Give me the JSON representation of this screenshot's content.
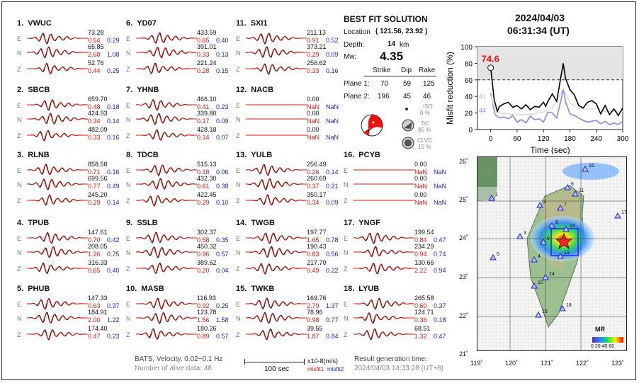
{
  "date": "2024/04/03",
  "time": "06:31:34  (UT)",
  "solution": {
    "title": "BEST FIT SOLUTION",
    "location_label": "Location",
    "location": "( 121.56, 23.92 )",
    "depth_label": "Depth:",
    "depth": "14",
    "depth_unit": "km",
    "mw_label": "Mw:",
    "mw": "4.35",
    "headers": [
      "Strike",
      "Dip",
      "Rake"
    ],
    "planes": [
      {
        "label": "Plane 1:",
        "values": [
          "70",
          "59",
          "125"
        ]
      },
      {
        "label": "Plane 2:",
        "values": [
          "196",
          "45",
          "46"
        ]
      }
    ],
    "iso_label": "ISO",
    "iso_value": "0 %",
    "dc_label": "DC",
    "dc_value": "85 %",
    "clvd_label": "CLVD",
    "clvd_value": "15 %"
  },
  "stations": [
    {
      "num": "1.",
      "name": "VWUC",
      "rows": [
        {
          "c": "E",
          "amp": "73.28",
          "m1": "0.54",
          "m2": "0.29"
        },
        {
          "c": "N",
          "amp": "65.85",
          "m1": "2.68",
          "m2": "1.08"
        },
        {
          "c": "Z",
          "amp": "52.76",
          "m1": "0.44",
          "m2": "0.25"
        }
      ]
    },
    {
      "num": "2.",
      "name": "SBCB",
      "rows": [
        {
          "c": "E",
          "amp": "659.70",
          "m1": "0.48",
          "m2": "0.18"
        },
        {
          "c": "N",
          "amp": "424.93",
          "m1": "0.34",
          "m2": "0.14"
        },
        {
          "c": "Z",
          "amp": "482.09",
          "m1": "0.33",
          "m2": "0.16"
        }
      ]
    },
    {
      "num": "3.",
      "name": "RLNB",
      "rows": [
        {
          "c": "E",
          "amp": "858.58",
          "m1": "0.71",
          "m2": "0.16"
        },
        {
          "c": "N",
          "amp": "699.56",
          "m1": "0.77",
          "m2": "0.49"
        },
        {
          "c": "Z",
          "amp": "245.20",
          "m1": "0.29",
          "m2": "0.14"
        }
      ]
    },
    {
      "num": "4.",
      "name": "TPUB",
      "rows": [
        {
          "c": "E",
          "amp": "147.61",
          "m1": "0.70",
          "m2": "0.42"
        },
        {
          "c": "N",
          "amp": "208.05",
          "m1": "1.26",
          "m2": "0.75"
        },
        {
          "c": "Z",
          "amp": "316.33",
          "m1": "0.65",
          "m2": "0.40"
        }
      ]
    },
    {
      "num": "5.",
      "name": "PHUB",
      "rows": [
        {
          "c": "E",
          "amp": "147.33",
          "m1": "0.63",
          "m2": "0.37"
        },
        {
          "c": "N",
          "amp": "184.91",
          "m1": "2.00",
          "m2": "1.22"
        },
        {
          "c": "Z",
          "amp": "174.40",
          "m1": "0.47",
          "m2": "0.23"
        }
      ]
    },
    {
      "num": "6.",
      "name": "YD07",
      "rows": [
        {
          "c": "E",
          "amp": "433.59",
          "m1": "0.65",
          "m2": "0.40"
        },
        {
          "c": "N",
          "amp": "391.01",
          "m1": "0.33",
          "m2": "0.13"
        },
        {
          "c": "Z",
          "amp": "221.24",
          "m1": "0.28",
          "m2": "0.15"
        }
      ]
    },
    {
      "num": "7.",
      "name": "YHNB",
      "rows": [
        {
          "c": "E",
          "amp": "466.10",
          "m1": "0.41",
          "m2": "0.23"
        },
        {
          "c": "N",
          "amp": "339.80",
          "m1": "0.17",
          "m2": "0.09"
        },
        {
          "c": "Z",
          "amp": "428.18",
          "m1": "0.14",
          "m2": "0.07"
        }
      ]
    },
    {
      "num": "8.",
      "name": "TDCB",
      "rows": [
        {
          "c": "E",
          "amp": "515.13",
          "m1": "0.18",
          "m2": "0.06"
        },
        {
          "c": "N",
          "amp": "432.30",
          "m1": "0.61",
          "m2": "0.38"
        },
        {
          "c": "Z",
          "amp": "422.45",
          "m1": "0.29",
          "m2": "0.10"
        }
      ]
    },
    {
      "num": "9.",
      "name": "SSLB",
      "rows": [
        {
          "c": "E",
          "amp": "302.37",
          "m1": "0.58",
          "m2": "0.35"
        },
        {
          "c": "N",
          "amp": "450.32",
          "m1": "0.96",
          "m2": "0.57"
        },
        {
          "c": "Z",
          "amp": "389.62",
          "m1": "0.20",
          "m2": "0.04"
        }
      ]
    },
    {
      "num": "10.",
      "name": "MASB",
      "rows": [
        {
          "c": "E",
          "amp": "116.93",
          "m1": "0.92",
          "m2": "0.25"
        },
        {
          "c": "N",
          "amp": "123.78",
          "m1": "1.56",
          "m2": "1.58"
        },
        {
          "c": "Z",
          "amp": "180.26",
          "m1": "0.89",
          "m2": "0.57"
        }
      ]
    },
    {
      "num": "11.",
      "name": "SXI1",
      "rows": [
        {
          "c": "E",
          "amp": "211.13",
          "m1": "0.91",
          "m2": "0.52"
        },
        {
          "c": "N",
          "amp": "373.21",
          "m1": "0.29",
          "m2": "0.09"
        },
        {
          "c": "Z",
          "amp": "256.62",
          "m1": "0.33",
          "m2": "0.16"
        }
      ]
    },
    {
      "num": "12.",
      "name": "NACB",
      "rows": [
        {
          "c": "E",
          "amp": "0.00",
          "m1": "NaN",
          "m2": "NaN"
        },
        {
          "c": "N",
          "amp": "0.00",
          "m1": "NaN",
          "m2": "NaN"
        },
        {
          "c": "Z",
          "amp": "0.00",
          "m1": "NaN",
          "m2": "NaN"
        }
      ]
    },
    {
      "num": "13.",
      "name": "YULB",
      "rows": [
        {
          "c": "E",
          "amp": "256.49",
          "m1": "0.26",
          "m2": "0.14"
        },
        {
          "c": "N",
          "amp": "260.69",
          "m1": "0.37",
          "m2": "0.21"
        },
        {
          "c": "Z",
          "amp": "350.17",
          "m1": "0.34",
          "m2": "0.09"
        }
      ]
    },
    {
      "num": "14.",
      "name": "TWGB",
      "rows": [
        {
          "c": "E",
          "amp": "197.77",
          "m1": "1.65",
          "m2": "0.78"
        },
        {
          "c": "N",
          "amp": "190.43",
          "m1": "0.83",
          "m2": "0.56"
        },
        {
          "c": "Z",
          "amp": "217.70",
          "m1": "0.49",
          "m2": "0.22"
        }
      ]
    },
    {
      "num": "15.",
      "name": "TWKB",
      "rows": [
        {
          "c": "E",
          "amp": "169.76",
          "m1": "2.79",
          "m2": "1.37"
        },
        {
          "c": "N",
          "amp": "78.96",
          "m1": "0.98",
          "m2": "0.77"
        },
        {
          "c": "Z",
          "amp": "39.55",
          "m1": "1.87",
          "m2": "0.84"
        }
      ]
    },
    {
      "num": "16.",
      "name": "PCYB",
      "rows": [
        {
          "c": "E",
          "amp": "0.00",
          "m1": "NaN",
          "m2": "NaN"
        },
        {
          "c": "N",
          "amp": "0.00",
          "m1": "NaN",
          "m2": "NaN"
        },
        {
          "c": "Z",
          "amp": "0.00",
          "m1": "NaN",
          "m2": "NaN"
        }
      ]
    },
    {
      "num": "17.",
      "name": "YNGF",
      "rows": [
        {
          "c": "E",
          "amp": "199.54",
          "m1": "0.84",
          "m2": "0.47"
        },
        {
          "c": "N",
          "amp": "234.29",
          "m1": "0.94",
          "m2": "0.74"
        },
        {
          "c": "Z",
          "amp": "130.66",
          "m1": "2.22",
          "m2": "0.94"
        }
      ]
    },
    {
      "num": "18.",
      "name": "LYUB",
      "rows": [
        {
          "c": "E",
          "amp": "265.58",
          "m1": "0.60",
          "m2": "0.37"
        },
        {
          "c": "N",
          "amp": "124.71",
          "m1": "0.36",
          "m2": "0.18"
        },
        {
          "c": "Z",
          "amp": "68.51",
          "m1": "1.32",
          "m2": "0.47"
        }
      ]
    }
  ],
  "footer": {
    "info1": "BATS, Velocity, 0.02~0.1 Hz",
    "info2": "Number of alive data: 48",
    "scale_label": "100 sec",
    "units": "x10-8(m/s)",
    "misfit1": "misfit1",
    "misfit2": "misfit2",
    "gen_label": "Result generation time:",
    "gen_time": "2024/04/03 14:33:28 (UT+8)"
  },
  "chart_data": {
    "type": "line",
    "ylabel": "Misfit reduction (%)",
    "xlabel": "Time (sec)",
    "xlim": [
      -30,
      300
    ],
    "ylim": [
      0,
      100
    ],
    "xticks": [
      "0",
      "60",
      "120",
      "180",
      "240",
      "300"
    ],
    "yticks": [
      "0",
      "20",
      "40",
      "60",
      "80",
      "100"
    ],
    "threshold": 60,
    "peak_label": "74.6",
    "peak": {
      "x": 0,
      "y": 74.6
    },
    "left_labels": [
      "41",
      "44"
    ],
    "series": [
      {
        "color": "#000000",
        "x": [
          0,
          8,
          15,
          20,
          30,
          40,
          50,
          60,
          70,
          80,
          90,
          100,
          110,
          120,
          125,
          130,
          140,
          150,
          160,
          165,
          170,
          180,
          190,
          200,
          210,
          220,
          230,
          240,
          250,
          260,
          270,
          280,
          290,
          300
        ],
        "y": [
          74.6,
          36,
          22,
          28,
          31,
          33,
          27,
          29,
          25,
          30,
          24,
          28,
          27,
          33,
          28,
          34,
          43,
          34,
          65,
          80,
          62,
          48,
          42,
          29,
          26,
          33,
          35,
          31,
          19,
          29,
          18,
          25,
          17,
          26
        ]
      },
      {
        "color": "#dddddd",
        "x": [
          0,
          10,
          20,
          40,
          60,
          80,
          100,
          120,
          140,
          160,
          165,
          170,
          180,
          200,
          220,
          240,
          260,
          280,
          300
        ],
        "y": [
          41,
          25,
          20,
          19,
          18,
          18,
          19,
          21,
          26,
          45,
          50,
          44,
          32,
          26,
          24,
          26,
          22,
          22,
          22
        ]
      },
      {
        "color": "#8888ee",
        "x": [
          0,
          10,
          20,
          30,
          40,
          50,
          60,
          70,
          80,
          90,
          100,
          110,
          120,
          130,
          140,
          150,
          160,
          165,
          170,
          180,
          190,
          200,
          210,
          220,
          230,
          240,
          250,
          260,
          270,
          280,
          290,
          300
        ],
        "y": [
          44,
          18,
          14,
          15,
          13,
          17,
          9,
          12,
          8,
          16,
          12,
          13,
          9,
          21,
          20,
          14,
          36,
          49,
          34,
          19,
          17,
          14,
          11,
          9,
          10,
          11,
          7,
          10,
          6,
          8,
          6,
          10
        ]
      }
    ]
  },
  "map": {
    "lon_ticks": [
      "119˚",
      "120˚",
      "121˚",
      "122˚",
      "123˚"
    ],
    "lat_ticks": [
      "26˚",
      "25˚",
      "24˚",
      "23˚",
      "22˚",
      "21˚"
    ],
    "legend_title": "MR",
    "legend_ticks": "0 20 40 60",
    "station_labels": [
      "1",
      "2",
      "3",
      "4",
      "5",
      "6",
      "7",
      "8",
      "9",
      "10",
      "11",
      "12",
      "13",
      "14",
      "15",
      "16",
      "17",
      "18"
    ]
  }
}
